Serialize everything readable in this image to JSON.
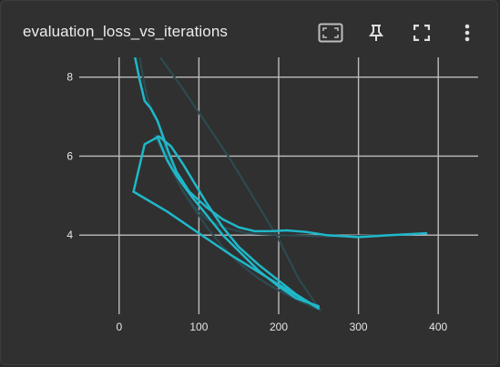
{
  "card": {
    "title": "evaluation_loss_vs_iterations"
  },
  "toolbar": {
    "icons": [
      "fit-domain-icon",
      "pin-icon",
      "fullscreen-icon",
      "more-vert-icon"
    ]
  },
  "colors": {
    "background": "#303030",
    "grid": "#bdbdbd",
    "series_main": "#1fb8c9",
    "series_faint": "#2d4a50"
  },
  "chart_data": {
    "type": "line",
    "title": "evaluation_loss_vs_iterations",
    "xlabel": "",
    "ylabel": "",
    "xlim": [
      -50,
      450
    ],
    "ylim": [
      2,
      8.5
    ],
    "grid": true,
    "x_ticks": [
      0,
      100,
      200,
      300,
      400
    ],
    "y_ticks": [
      4,
      6,
      8
    ],
    "series": [
      {
        "style": "faint",
        "x": [
          48,
          80,
          110,
          140,
          170,
          200,
          225,
          252
        ],
        "y": [
          8.6,
          7.7,
          6.8,
          5.9,
          4.9,
          3.9,
          2.9,
          2.1
        ]
      },
      {
        "style": "faint",
        "x": [
          25,
          30,
          35,
          42,
          50,
          58,
          68,
          80,
          95,
          110,
          130,
          160,
          200,
          240,
          280,
          320,
          360,
          385
        ],
        "y": [
          8.6,
          8.0,
          7.5,
          7.1,
          6.8,
          6.2,
          5.6,
          5.1,
          4.7,
          4.4,
          4.2,
          4.05,
          4.0,
          3.98,
          3.97,
          3.99,
          4.02,
          4.05
        ]
      },
      {
        "style": "faint",
        "x": [
          45,
          60,
          75,
          90,
          110,
          130,
          150,
          175,
          200,
          230,
          252
        ],
        "y": [
          6.5,
          5.9,
          5.3,
          4.8,
          4.2,
          3.7,
          3.3,
          2.9,
          2.6,
          2.3,
          2.1
        ]
      },
      {
        "style": "main",
        "x": [
          20,
          26,
          32,
          40,
          48,
          55,
          62,
          72,
          88,
          110,
          130,
          150,
          170,
          190,
          210,
          235,
          260,
          300,
          340,
          385
        ],
        "y": [
          8.5,
          7.9,
          7.4,
          7.2,
          6.9,
          6.5,
          6.1,
          5.6,
          5.1,
          4.7,
          4.4,
          4.2,
          4.1,
          4.1,
          4.12,
          4.08,
          4.0,
          3.95,
          4.0,
          4.05
        ]
      },
      {
        "style": "main",
        "x": [
          48,
          60,
          72,
          90,
          110,
          130,
          150,
          175,
          200,
          222,
          250
        ],
        "y": [
          6.5,
          5.9,
          5.5,
          5.0,
          4.5,
          4.0,
          3.6,
          3.1,
          2.7,
          2.4,
          2.2
        ]
      },
      {
        "style": "main",
        "x": [
          18,
          32,
          50,
          65,
          80,
          95,
          110,
          130,
          150,
          175,
          200,
          222,
          250
        ],
        "y": [
          5.1,
          6.3,
          6.5,
          6.25,
          5.8,
          5.3,
          4.8,
          4.2,
          3.7,
          3.25,
          2.85,
          2.5,
          2.15
        ]
      },
      {
        "style": "main",
        "x": [
          18,
          60,
          100,
          140,
          180,
          220,
          250
        ],
        "y": [
          5.1,
          4.6,
          4.05,
          3.5,
          3.0,
          2.5,
          2.15
        ]
      }
    ]
  }
}
